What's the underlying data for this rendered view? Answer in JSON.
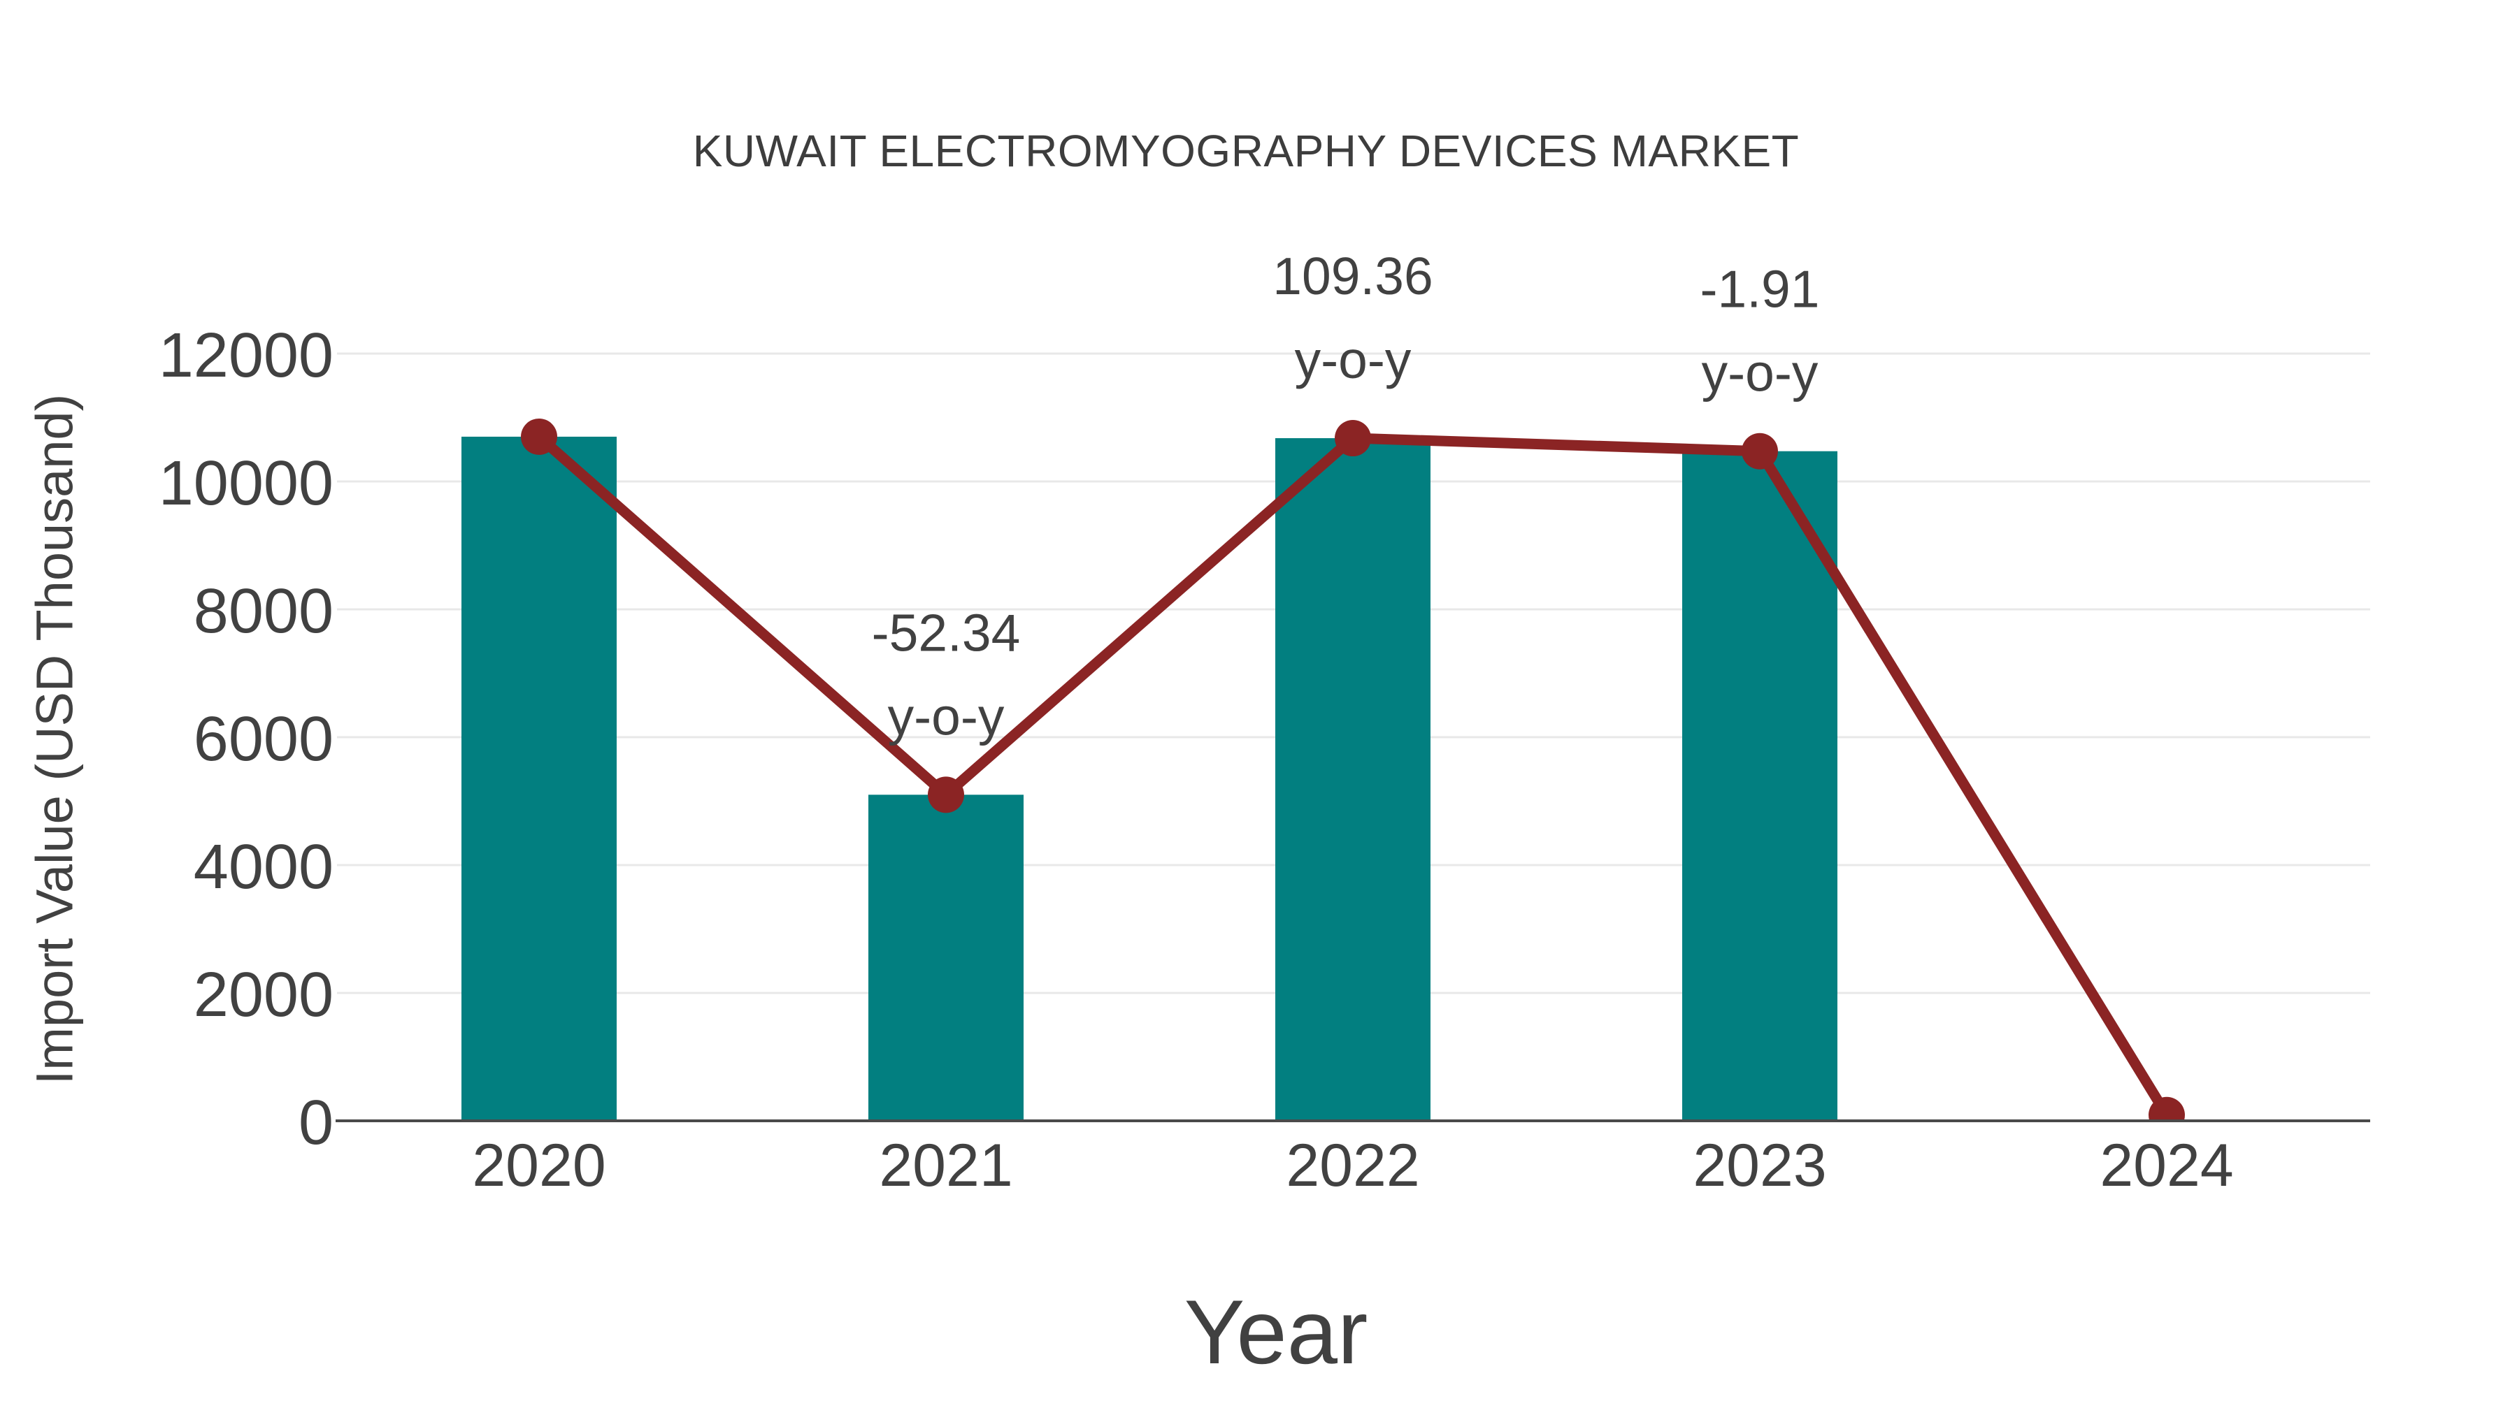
{
  "page": {
    "background": "#ffffff"
  },
  "colors": {
    "bar": "#027f80",
    "line": "#8b2424",
    "marker": "#8b2424",
    "text": "#414141",
    "title_text": "#3d3d3d",
    "grid": "#e8e8e8",
    "axis": "#4a4a4a",
    "background": "#ffffff"
  },
  "chart_data": {
    "type": "bar",
    "subtype": "bar-line-combo",
    "title": "KUWAIT ELECTROMYOGRAPHY DEVICES MARKET",
    "xlabel": "Year",
    "ylabel": "Import Value (USD Thousand)",
    "categories": [
      "2020",
      "2021",
      "2022",
      "2023",
      "2024"
    ],
    "series": [
      {
        "name": "Import Value bars",
        "type": "bar",
        "color": "#027f80",
        "values": [
          10700,
          5100,
          10677,
          10473,
          null
        ]
      },
      {
        "name": "Import Value trend line",
        "type": "line",
        "color": "#8b2424",
        "values": [
          10700,
          5100,
          10677,
          10473,
          90
        ]
      }
    ],
    "annotations": [
      {
        "category": "2021",
        "text": [
          "-52.34",
          "y-o-y"
        ]
      },
      {
        "category": "2022",
        "text": [
          "109.36",
          "y-o-y"
        ]
      },
      {
        "category": "2023",
        "text": [
          "-1.91",
          "y-o-y"
        ]
      }
    ],
    "ylim": [
      0,
      12000
    ],
    "yticks": [
      0,
      2000,
      4000,
      6000,
      8000,
      10000,
      12000
    ],
    "grid": "horizontal",
    "legend_position": "none"
  }
}
